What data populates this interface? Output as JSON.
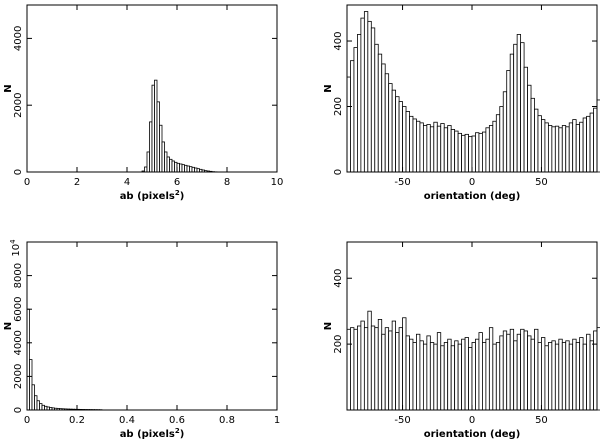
{
  "chart_data": [
    {
      "type": "bar",
      "panel": "top-left",
      "title": "",
      "xlabel": "ab (pixels",
      "xlabel_sup": "2",
      "xlabel_close": ")",
      "ylabel": "N",
      "xlim": [
        0,
        10
      ],
      "ylim": [
        0,
        5000
      ],
      "xticks": [
        0,
        2,
        4,
        6,
        8,
        10
      ],
      "xtick_labels": [
        "0",
        "2",
        "4",
        "6",
        "8",
        "10"
      ],
      "yticks": [
        0,
        2000,
        4000
      ],
      "ytick_labels": [
        "0",
        "2000",
        "4000"
      ],
      "grid": false,
      "bin_start": 4.6,
      "bin_width": 0.1,
      "values": [
        30,
        150,
        600,
        1500,
        2600,
        2750,
        2100,
        1400,
        900,
        600,
        450,
        380,
        330,
        290,
        260,
        240,
        220,
        200,
        180,
        160,
        140,
        120,
        100,
        80,
        60,
        40,
        30,
        20,
        10,
        5
      ]
    },
    {
      "type": "bar",
      "panel": "top-right",
      "title": "",
      "xlabel": "orientation (deg)",
      "ylabel": "N",
      "xlim": [
        -90,
        90
      ],
      "ylim": [
        0,
        510
      ],
      "xticks": [
        -50,
        0,
        50
      ],
      "xtick_labels": [
        "-50",
        "0",
        "50"
      ],
      "yticks": [
        0,
        200,
        400
      ],
      "ytick_labels": [
        "0",
        "200",
        "400"
      ],
      "grid": false,
      "bin_start": -90,
      "bin_width": 2.5,
      "values": [
        290,
        340,
        380,
        420,
        470,
        490,
        460,
        440,
        390,
        360,
        330,
        300,
        270,
        250,
        230,
        215,
        200,
        185,
        170,
        162,
        155,
        150,
        142,
        145,
        138,
        152,
        140,
        148,
        135,
        142,
        130,
        125,
        118,
        112,
        115,
        108,
        110,
        120,
        118,
        122,
        135,
        142,
        155,
        175,
        200,
        245,
        310,
        360,
        390,
        420,
        395,
        320,
        265,
        225,
        192,
        172,
        160,
        150,
        142,
        138,
        140,
        135,
        142,
        138,
        150,
        160,
        145,
        152,
        165,
        170,
        180,
        195,
        220,
        235,
        250,
        225
      ]
    },
    {
      "type": "bar",
      "panel": "bottom-left",
      "title": "",
      "xlabel": "ab (pixels",
      "xlabel_sup": "2",
      "xlabel_close": ")",
      "ylabel": "N",
      "y_exponent_base": "10",
      "y_exponent_power": "4",
      "xlim": [
        0,
        1
      ],
      "ylim": [
        0,
        10000
      ],
      "xticks": [
        0,
        0.2,
        0.4,
        0.6,
        0.8,
        1
      ],
      "xtick_labels": [
        "0",
        "0.2",
        "0.4",
        "0.6",
        "0.8",
        "1"
      ],
      "yticks": [
        0,
        2000,
        4000,
        6000,
        8000
      ],
      "ytick_labels": [
        "0",
        "2000",
        "4000",
        "6000",
        "8000"
      ],
      "grid": false,
      "bin_start": 0,
      "bin_width": 0.01,
      "values": [
        6000,
        3000,
        1500,
        850,
        550,
        380,
        280,
        220,
        180,
        150,
        125,
        105,
        90,
        80,
        72,
        65,
        58,
        52,
        47,
        43,
        39,
        36,
        33,
        30,
        28,
        26,
        24,
        22,
        20,
        18
      ]
    },
    {
      "type": "bar",
      "panel": "bottom-right",
      "title": "",
      "xlabel": "orientation (deg)",
      "ylabel": "N",
      "xlim": [
        -90,
        90
      ],
      "ylim": [
        0,
        510
      ],
      "xticks": [
        -50,
        0,
        50
      ],
      "xtick_labels": [
        "-50",
        "0",
        "50"
      ],
      "yticks": [
        200,
        400
      ],
      "ytick_labels": [
        "200",
        "400"
      ],
      "grid": false,
      "bin_start": -90,
      "bin_width": 2.5,
      "values": [
        245,
        250,
        245,
        255,
        270,
        250,
        300,
        255,
        250,
        275,
        230,
        250,
        240,
        270,
        235,
        250,
        280,
        225,
        215,
        205,
        230,
        210,
        200,
        225,
        205,
        200,
        235,
        195,
        205,
        215,
        195,
        210,
        200,
        215,
        220,
        190,
        205,
        215,
        235,
        205,
        215,
        250,
        200,
        205,
        225,
        240,
        230,
        245,
        210,
        230,
        245,
        240,
        225,
        215,
        245,
        205,
        220,
        195,
        205,
        210,
        200,
        215,
        205,
        210,
        200,
        215,
        205,
        220,
        200,
        230,
        210,
        240,
        250,
        245,
        260,
        240
      ]
    }
  ]
}
